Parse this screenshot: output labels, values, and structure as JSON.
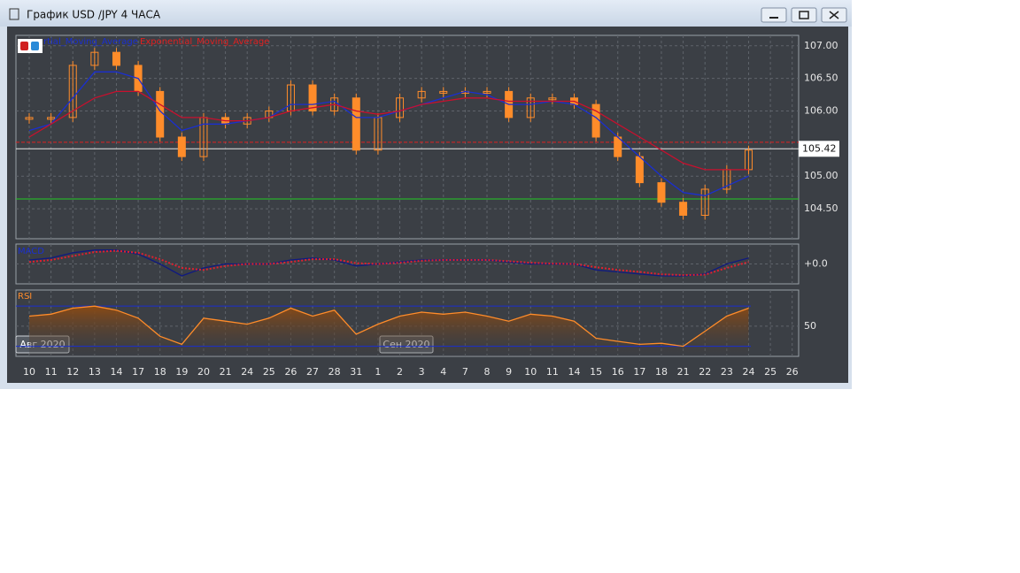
{
  "window": {
    "title": "График USD /JPY  4 ЧАСА"
  },
  "chart_data": {
    "type": "candlestick",
    "categories": [
      "10",
      "11",
      "12",
      "13",
      "14",
      "17",
      "18",
      "19",
      "20",
      "21",
      "24",
      "25",
      "26",
      "27",
      "28",
      "31",
      "1",
      "2",
      "3",
      "4",
      "7",
      "8",
      "9",
      "10",
      "11",
      "14",
      "15",
      "16",
      "17",
      "18",
      "21",
      "22",
      "23",
      "24",
      "25",
      "26"
    ],
    "month_labels": [
      "Авг 2020",
      "Сен 2020"
    ],
    "legend": [
      "rtial_Moving_Average",
      "Exponential_Moving_Average"
    ],
    "series": [
      {
        "name": "price",
        "color": "#ff8c2a",
        "values": [
          105.9,
          105.9,
          106.7,
          106.9,
          106.7,
          106.3,
          105.6,
          105.3,
          105.9,
          105.8,
          105.9,
          106.0,
          106.4,
          106.0,
          106.2,
          105.4,
          105.9,
          106.2,
          106.3,
          106.3,
          106.3,
          106.3,
          105.9,
          106.2,
          106.2,
          106.1,
          105.6,
          105.3,
          104.9,
          104.6,
          104.4,
          104.8,
          105.1,
          105.4,
          null,
          null
        ]
      },
      {
        "name": "rtial_Moving_Average",
        "color": "#1a2fd0",
        "values": [
          105.7,
          105.8,
          106.2,
          106.6,
          106.6,
          106.5,
          106.0,
          105.7,
          105.8,
          105.8,
          105.85,
          105.9,
          106.1,
          106.1,
          106.15,
          105.9,
          105.9,
          106.0,
          106.1,
          106.2,
          106.3,
          106.25,
          106.1,
          106.1,
          106.15,
          106.1,
          105.9,
          105.6,
          105.3,
          105.0,
          104.75,
          104.7,
          104.85,
          105.0,
          null,
          null
        ]
      },
      {
        "name": "Exponential_Moving_Average",
        "color": "#c8102e",
        "values": [
          105.6,
          105.8,
          106.0,
          106.2,
          106.3,
          106.3,
          106.1,
          105.9,
          105.9,
          105.85,
          105.85,
          105.9,
          106.0,
          106.05,
          106.1,
          106.0,
          105.95,
          106.0,
          106.1,
          106.15,
          106.2,
          106.2,
          106.15,
          106.15,
          106.15,
          106.15,
          106.0,
          105.8,
          105.6,
          105.4,
          105.2,
          105.1,
          105.1,
          105.1,
          null,
          null
        ]
      }
    ],
    "ylim": [
      104.04,
      107.16
    ],
    "yticks": [
      {
        "value": 107,
        "label": "107.00"
      },
      {
        "value": 106.5,
        "label": "106.50"
      },
      {
        "value": 106,
        "label": "106.00"
      },
      {
        "value": 105,
        "label": "105.00"
      },
      {
        "value": 104.5,
        "label": "104.50"
      }
    ],
    "levels": [
      {
        "value": 105.52,
        "color": "#e02020"
      },
      {
        "value": 105.42,
        "label": "105.42",
        "color": "#e8e8e8"
      },
      {
        "value": 104.65,
        "color": "#22cc22"
      }
    ],
    "macd": {
      "label": "MACD",
      "ylim": [
        -0.5,
        0.5
      ],
      "yticks": [
        {
          "value": 0,
          "label": "+0.0"
        }
      ],
      "series": [
        {
          "name": "macd",
          "color": "#101a80",
          "values": [
            0.1,
            0.15,
            0.28,
            0.35,
            0.35,
            0.25,
            0.0,
            -0.3,
            -0.1,
            0,
            0,
            0,
            0.1,
            0.15,
            0.1,
            -0.05,
            0,
            0.05,
            0.1,
            0.1,
            0.1,
            0.1,
            0.05,
            0,
            0,
            0,
            -0.15,
            -0.2,
            -0.25,
            -0.3,
            -0.3,
            -0.25,
            0,
            0.15,
            null,
            null
          ]
        },
        {
          "name": "signal",
          "color": "#e02030",
          "values": [
            0.05,
            0.1,
            0.2,
            0.3,
            0.33,
            0.28,
            0.12,
            -0.1,
            -0.15,
            -0.05,
            0,
            0,
            0.05,
            0.12,
            0.12,
            0.02,
            0,
            0.03,
            0.08,
            0.1,
            0.1,
            0.1,
            0.07,
            0.03,
            0.01,
            0,
            -0.08,
            -0.15,
            -0.2,
            -0.26,
            -0.28,
            -0.27,
            -0.1,
            0.05,
            null,
            null
          ]
        }
      ]
    },
    "rsi": {
      "label": "RSI",
      "color": "#ff8c2a",
      "ylim": [
        20,
        86
      ],
      "yticks": [
        50
      ],
      "levels": [
        70,
        30
      ],
      "values": [
        60,
        62,
        68,
        70,
        66,
        58,
        40,
        32,
        58,
        55,
        52,
        58,
        68,
        60,
        66,
        42,
        52,
        60,
        64,
        62,
        64,
        60,
        55,
        62,
        60,
        55,
        38,
        35,
        32,
        33,
        30,
        45,
        60,
        68,
        null,
        null
      ]
    },
    "grid": true
  }
}
